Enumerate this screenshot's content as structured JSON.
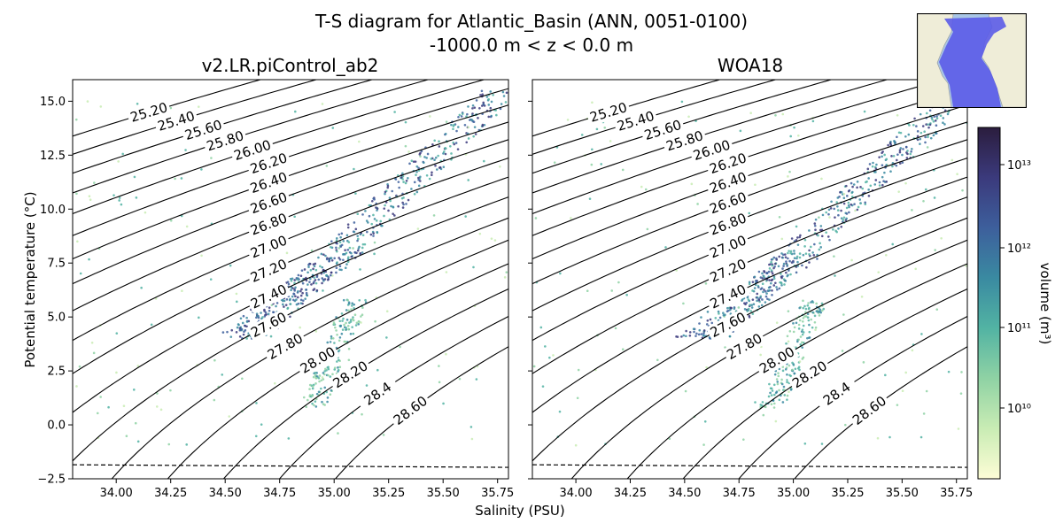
{
  "title_line1": "T-S diagram for Atlantic_Basin (ANN, 0051-0100)",
  "title_line2": "-1000.0 m < z < 0.0 m",
  "panels": [
    {
      "title": "v2.LR.piControl_ab2"
    },
    {
      "title": "WOA18"
    }
  ],
  "axes": {
    "xlabel": "Salinity (PSU)",
    "ylabel": "Potential temperature (°C)",
    "xticks": [
      "34.00",
      "34.25",
      "34.50",
      "34.75",
      "35.00",
      "35.25",
      "35.50",
      "35.75"
    ],
    "yticks": [
      "−2.5",
      "0.0",
      "2.5",
      "5.0",
      "7.5",
      "10.0",
      "12.5",
      "15.0"
    ]
  },
  "colorbar": {
    "label": "volume (m³)",
    "ticks": [
      "10¹³",
      "10¹²",
      "10¹¹",
      "10¹⁰"
    ],
    "colors": [
      "#fdfdd6",
      "#c9ecb4",
      "#8fd2a4",
      "#52b3a3",
      "#3a8aa1",
      "#3d5f9c",
      "#3b3a7c",
      "#2b1d3e"
    ]
  },
  "chart_data": [
    {
      "type": "heatmap",
      "title": "v2.LR.piControl_ab2",
      "xlabel": "Salinity (PSU)",
      "ylabel": "Potential temperature (°C)",
      "xlim": [
        33.8,
        35.8
      ],
      "ylim": [
        -2.5,
        16.0
      ],
      "density_contours": [
        "25.20",
        "25.40",
        "25.60",
        "25.80",
        "26.00",
        "26.20",
        "26.40",
        "26.60",
        "26.80",
        "27.00",
        "27.20",
        "27.40",
        "27.60",
        "27.80",
        "28.00",
        "28.20",
        "28.4",
        "28.60"
      ],
      "freezing_line_dashed": true
    },
    {
      "type": "heatmap",
      "title": "WOA18",
      "xlabel": "Salinity (PSU)",
      "ylabel": "Potential temperature (°C)",
      "xlim": [
        33.8,
        35.8
      ],
      "ylim": [
        -2.5,
        16.0
      ],
      "density_contours": [
        "25.20",
        "25.40",
        "25.60",
        "25.80",
        "26.00",
        "26.20",
        "26.40",
        "26.60",
        "26.80",
        "27.00",
        "27.20",
        "27.40",
        "27.60",
        "27.80",
        "28.00",
        "28.20",
        "28.4",
        "28.60"
      ],
      "freezing_line_dashed": true
    }
  ]
}
